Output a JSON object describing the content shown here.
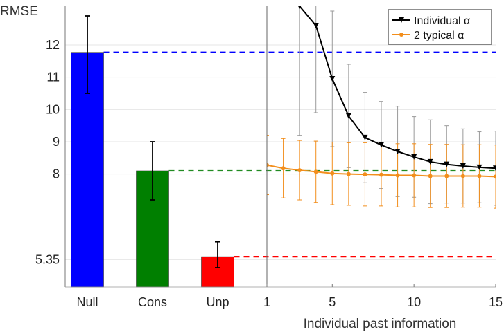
{
  "chart_data": [
    {
      "type": "bar",
      "ylabel": "RMSE",
      "categories": [
        "Null",
        "Cons",
        "Unp"
      ],
      "values": [
        11.77,
        8.1,
        5.44
      ],
      "error_low": [
        10.5,
        7.2,
        5.1
      ],
      "error_high": [
        12.9,
        9.0,
        5.9
      ],
      "colors": [
        "#0000ff",
        "#007f00",
        "#ff0000"
      ],
      "reference_lines": [
        11.77,
        8.1,
        5.44
      ],
      "reference_colors": [
        "#0000ff",
        "#228b22",
        "#ff0000"
      ],
      "yticks": [
        "5.35",
        "8",
        "9",
        "10",
        "11",
        "12"
      ],
      "ylim": [
        4.5,
        13.2
      ],
      "grid": true
    },
    {
      "type": "line",
      "xlabel": "Individual past information",
      "xticks": [
        "1",
        "5",
        "10",
        "15"
      ],
      "xlim": [
        1,
        15
      ],
      "ylim": [
        4.5,
        13.2
      ],
      "legend_position": "top-right",
      "series": [
        {
          "name": "Individual α",
          "color": "#000000",
          "marker": "triangle-down",
          "x": [
            3,
            4,
            5,
            6,
            7,
            8,
            9,
            10,
            11,
            12,
            13,
            14,
            15
          ],
          "y": [
            13.2,
            12.6,
            10.95,
            9.8,
            9.13,
            8.9,
            8.7,
            8.53,
            8.38,
            8.3,
            8.25,
            8.21,
            8.18
          ],
          "err": [
            4.0,
            2.7,
            2.1,
            1.6,
            1.4,
            1.35,
            1.4,
            1.25,
            1.3,
            1.2,
            1.15,
            1.1,
            1.15
          ]
        },
        {
          "name": "2 typical α",
          "color": "#f28e1c",
          "marker": "circle",
          "x": [
            1,
            2,
            3,
            4,
            5,
            6,
            7,
            8,
            9,
            10,
            11,
            12,
            13,
            14,
            15
          ],
          "y": [
            8.28,
            8.18,
            8.12,
            8.07,
            8.02,
            8.0,
            7.99,
            7.98,
            7.96,
            7.96,
            7.94,
            7.94,
            7.94,
            7.94,
            7.92
          ],
          "err": [
            0.92,
            0.92,
            0.92,
            0.95,
            0.97,
            0.97,
            0.98,
            0.97,
            0.98,
            0.98,
            0.98,
            0.98,
            0.97,
            0.97,
            0.98
          ]
        }
      ]
    }
  ]
}
